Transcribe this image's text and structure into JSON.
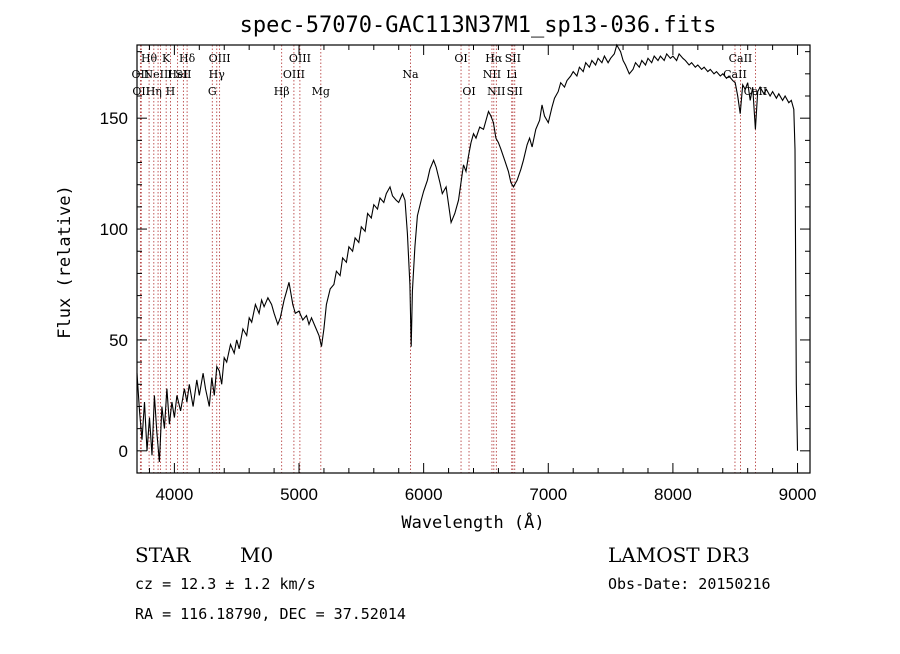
{
  "chart_data": {
    "type": "line",
    "title": "spec-57070-GAC113N37M1_sp13-036.fits",
    "xlabel": "Wavelength (Å)",
    "ylabel": "Flux (relative)",
    "xlim": [
      3700,
      9100
    ],
    "ylim": [
      -10,
      183
    ],
    "x_ticks": [
      4000,
      5000,
      6000,
      7000,
      8000,
      9000
    ],
    "x_tick_labels": [
      "4000",
      "5000",
      "6000",
      "7000",
      "8000",
      "9000"
    ],
    "y_ticks": [
      0,
      50,
      100,
      150
    ],
    "y_tick_labels": [
      "0",
      "50",
      "100",
      "150"
    ],
    "line_color": "#000000",
    "marker_color": "#b03030",
    "series": [
      {
        "points": [
          [
            3700,
            35
          ],
          [
            3720,
            18
          ],
          [
            3740,
            5
          ],
          [
            3760,
            22
          ],
          [
            3780,
            0
          ],
          [
            3800,
            15
          ],
          [
            3820,
            -2
          ],
          [
            3840,
            25
          ],
          [
            3860,
            8
          ],
          [
            3880,
            -5
          ],
          [
            3900,
            20
          ],
          [
            3920,
            10
          ],
          [
            3940,
            28
          ],
          [
            3960,
            12
          ],
          [
            3980,
            22
          ],
          [
            4000,
            15
          ],
          [
            4020,
            25
          ],
          [
            4050,
            18
          ],
          [
            4080,
            28
          ],
          [
            4100,
            22
          ],
          [
            4120,
            30
          ],
          [
            4150,
            20
          ],
          [
            4180,
            32
          ],
          [
            4200,
            25
          ],
          [
            4230,
            35
          ],
          [
            4250,
            28
          ],
          [
            4280,
            20
          ],
          [
            4300,
            33
          ],
          [
            4320,
            25
          ],
          [
            4340,
            38
          ],
          [
            4360,
            36
          ],
          [
            4380,
            30
          ],
          [
            4400,
            42
          ],
          [
            4420,
            40
          ],
          [
            4450,
            48
          ],
          [
            4480,
            44
          ],
          [
            4500,
            50
          ],
          [
            4520,
            46
          ],
          [
            4550,
            55
          ],
          [
            4580,
            52
          ],
          [
            4600,
            60
          ],
          [
            4620,
            58
          ],
          [
            4650,
            66
          ],
          [
            4680,
            62
          ],
          [
            4700,
            68
          ],
          [
            4720,
            65
          ],
          [
            4750,
            69
          ],
          [
            4780,
            66
          ],
          [
            4800,
            62
          ],
          [
            4830,
            57
          ],
          [
            4850,
            60
          ],
          [
            4880,
            68
          ],
          [
            4900,
            72
          ],
          [
            4920,
            76
          ],
          [
            4950,
            66
          ],
          [
            4970,
            62
          ],
          [
            5000,
            63
          ],
          [
            5030,
            59
          ],
          [
            5060,
            61
          ],
          [
            5080,
            57
          ],
          [
            5100,
            60
          ],
          [
            5130,
            56
          ],
          [
            5160,
            52
          ],
          [
            5180,
            47
          ],
          [
            5200,
            55
          ],
          [
            5220,
            66
          ],
          [
            5250,
            73
          ],
          [
            5280,
            75
          ],
          [
            5300,
            81
          ],
          [
            5330,
            79
          ],
          [
            5350,
            87
          ],
          [
            5380,
            85
          ],
          [
            5400,
            92
          ],
          [
            5430,
            90
          ],
          [
            5450,
            96
          ],
          [
            5480,
            94
          ],
          [
            5500,
            101
          ],
          [
            5530,
            99
          ],
          [
            5550,
            107
          ],
          [
            5580,
            105
          ],
          [
            5600,
            111
          ],
          [
            5630,
            109
          ],
          [
            5650,
            114
          ],
          [
            5680,
            112
          ],
          [
            5700,
            116
          ],
          [
            5730,
            119
          ],
          [
            5750,
            115
          ],
          [
            5780,
            113
          ],
          [
            5800,
            112
          ],
          [
            5830,
            116
          ],
          [
            5850,
            113
          ],
          [
            5870,
            98
          ],
          [
            5890,
            75
          ],
          [
            5900,
            47
          ],
          [
            5910,
            72
          ],
          [
            5930,
            92
          ],
          [
            5950,
            106
          ],
          [
            5980,
            113
          ],
          [
            6000,
            117
          ],
          [
            6030,
            122
          ],
          [
            6050,
            127
          ],
          [
            6080,
            131
          ],
          [
            6100,
            128
          ],
          [
            6130,
            121
          ],
          [
            6150,
            116
          ],
          [
            6180,
            119
          ],
          [
            6200,
            111
          ],
          [
            6220,
            103
          ],
          [
            6250,
            107
          ],
          [
            6280,
            113
          ],
          [
            6300,
            121
          ],
          [
            6320,
            129
          ],
          [
            6340,
            126
          ],
          [
            6360,
            133
          ],
          [
            6380,
            139
          ],
          [
            6400,
            143
          ],
          [
            6420,
            141
          ],
          [
            6450,
            146
          ],
          [
            6480,
            145
          ],
          [
            6500,
            149
          ],
          [
            6520,
            153
          ],
          [
            6540,
            151
          ],
          [
            6560,
            148
          ],
          [
            6580,
            141
          ],
          [
            6600,
            139
          ],
          [
            6620,
            136
          ],
          [
            6650,
            131
          ],
          [
            6680,
            126
          ],
          [
            6700,
            121
          ],
          [
            6720,
            119
          ],
          [
            6750,
            122
          ],
          [
            6780,
            127
          ],
          [
            6800,
            131
          ],
          [
            6830,
            138
          ],
          [
            6850,
            141
          ],
          [
            6870,
            137
          ],
          [
            6900,
            145
          ],
          [
            6930,
            149
          ],
          [
            6950,
            156
          ],
          [
            6970,
            151
          ],
          [
            7000,
            148
          ],
          [
            7030,
            155
          ],
          [
            7050,
            159
          ],
          [
            7080,
            162
          ],
          [
            7100,
            166
          ],
          [
            7130,
            164
          ],
          [
            7150,
            167
          ],
          [
            7180,
            169
          ],
          [
            7200,
            171
          ],
          [
            7230,
            169
          ],
          [
            7250,
            173
          ],
          [
            7280,
            171
          ],
          [
            7300,
            175
          ],
          [
            7330,
            173
          ],
          [
            7350,
            176
          ],
          [
            7380,
            174
          ],
          [
            7400,
            177
          ],
          [
            7430,
            175
          ],
          [
            7450,
            178
          ],
          [
            7480,
            175
          ],
          [
            7500,
            177
          ],
          [
            7530,
            179
          ],
          [
            7550,
            183
          ],
          [
            7580,
            180
          ],
          [
            7600,
            176
          ],
          [
            7620,
            174
          ],
          [
            7650,
            170
          ],
          [
            7680,
            172
          ],
          [
            7700,
            175
          ],
          [
            7730,
            173
          ],
          [
            7750,
            176
          ],
          [
            7780,
            174
          ],
          [
            7800,
            177
          ],
          [
            7830,
            175
          ],
          [
            7850,
            178
          ],
          [
            7880,
            176
          ],
          [
            7900,
            178
          ],
          [
            7930,
            176
          ],
          [
            7950,
            179
          ],
          [
            7980,
            177
          ],
          [
            8000,
            178
          ],
          [
            8030,
            176
          ],
          [
            8050,
            179
          ],
          [
            8080,
            177
          ],
          [
            8100,
            176
          ],
          [
            8130,
            174
          ],
          [
            8150,
            175
          ],
          [
            8180,
            173
          ],
          [
            8200,
            174
          ],
          [
            8230,
            172
          ],
          [
            8250,
            173
          ],
          [
            8280,
            171
          ],
          [
            8300,
            172
          ],
          [
            8330,
            170
          ],
          [
            8350,
            171
          ],
          [
            8380,
            169
          ],
          [
            8400,
            170
          ],
          [
            8430,
            168
          ],
          [
            8450,
            169
          ],
          [
            8480,
            167
          ],
          [
            8500,
            166
          ],
          [
            8520,
            160
          ],
          [
            8540,
            152
          ],
          [
            8560,
            165
          ],
          [
            8580,
            163
          ],
          [
            8600,
            166
          ],
          [
            8620,
            158
          ],
          [
            8640,
            164
          ],
          [
            8662,
            145
          ],
          [
            8680,
            162
          ],
          [
            8700,
            164
          ],
          [
            8730,
            161
          ],
          [
            8750,
            163
          ],
          [
            8780,
            160
          ],
          [
            8800,
            162
          ],
          [
            8830,
            159
          ],
          [
            8850,
            161
          ],
          [
            8880,
            158
          ],
          [
            8900,
            160
          ],
          [
            8930,
            157
          ],
          [
            8950,
            158
          ],
          [
            8970,
            154
          ],
          [
            8980,
            136
          ],
          [
            8990,
            30
          ],
          [
            9000,
            0
          ]
        ]
      }
    ],
    "lines": [
      {
        "x": 3727,
        "labels": [
          "OII"
        ],
        "row": 2
      },
      {
        "x": 3734,
        "labels": [
          "OII"
        ],
        "row": 3
      },
      {
        "x": 3797,
        "labels": [
          "Hθ"
        ],
        "row": 1
      },
      {
        "x": 3835,
        "labels": [
          "Hη"
        ],
        "row": 3
      },
      {
        "x": 3869,
        "labels": [
          "NeIII"
        ],
        "row": 2
      },
      {
        "x": 3889,
        "labels": [],
        "row": 0
      },
      {
        "x": 3934,
        "labels": [
          "K"
        ],
        "row": 1
      },
      {
        "x": 3968,
        "labels": [
          "H"
        ],
        "row": 3
      },
      {
        "x": 4026,
        "labels": [
          "HeI"
        ],
        "row": 2
      },
      {
        "x": 4072,
        "labels": [
          "SII"
        ],
        "row": 2
      },
      {
        "x": 4102,
        "labels": [
          "Hδ"
        ],
        "row": 1
      },
      {
        "x": 4304,
        "labels": [
          "G"
        ],
        "row": 3
      },
      {
        "x": 4340,
        "labels": [
          "Hγ"
        ],
        "row": 2
      },
      {
        "x": 4363,
        "labels": [
          "OIII"
        ],
        "row": 1
      },
      {
        "x": 4861,
        "labels": [
          "Hβ"
        ],
        "row": 3
      },
      {
        "x": 4959,
        "labels": [
          "OIII"
        ],
        "row": 2
      },
      {
        "x": 5007,
        "labels": [
          "OIII"
        ],
        "row": 1
      },
      {
        "x": 5175,
        "labels": [
          "Mg"
        ],
        "row": 3
      },
      {
        "x": 5894,
        "labels": [
          "Na"
        ],
        "row": 2
      },
      {
        "x": 6300,
        "labels": [
          "OI"
        ],
        "row": 1
      },
      {
        "x": 6364,
        "labels": [
          "OI"
        ],
        "row": 3
      },
      {
        "x": 6548,
        "labels": [
          "NII"
        ],
        "row": 2
      },
      {
        "x": 6563,
        "labels": [
          "Hα"
        ],
        "row": 1
      },
      {
        "x": 6583,
        "labels": [
          "NII"
        ],
        "row": 3
      },
      {
        "x": 6707,
        "labels": [
          "Li"
        ],
        "row": 2
      },
      {
        "x": 6716,
        "labels": [
          "SII"
        ],
        "row": 1
      },
      {
        "x": 6731,
        "labels": [
          "SII"
        ],
        "row": 3
      },
      {
        "x": 8498,
        "labels": [
          "CaII"
        ],
        "row": 2
      },
      {
        "x": 8542,
        "labels": [
          "CaII"
        ],
        "row": 1
      },
      {
        "x": 8662,
        "labels": [
          "CaII"
        ],
        "row": 3
      }
    ]
  },
  "info": {
    "object_class": "STAR",
    "subclass": "M0",
    "survey": "LAMOST DR3",
    "cz": "cz = 12.3 ± 1.2 km/s",
    "obs_date": "Obs-Date: 20150216",
    "coords": "RA = 116.18790, DEC =  37.52014"
  }
}
